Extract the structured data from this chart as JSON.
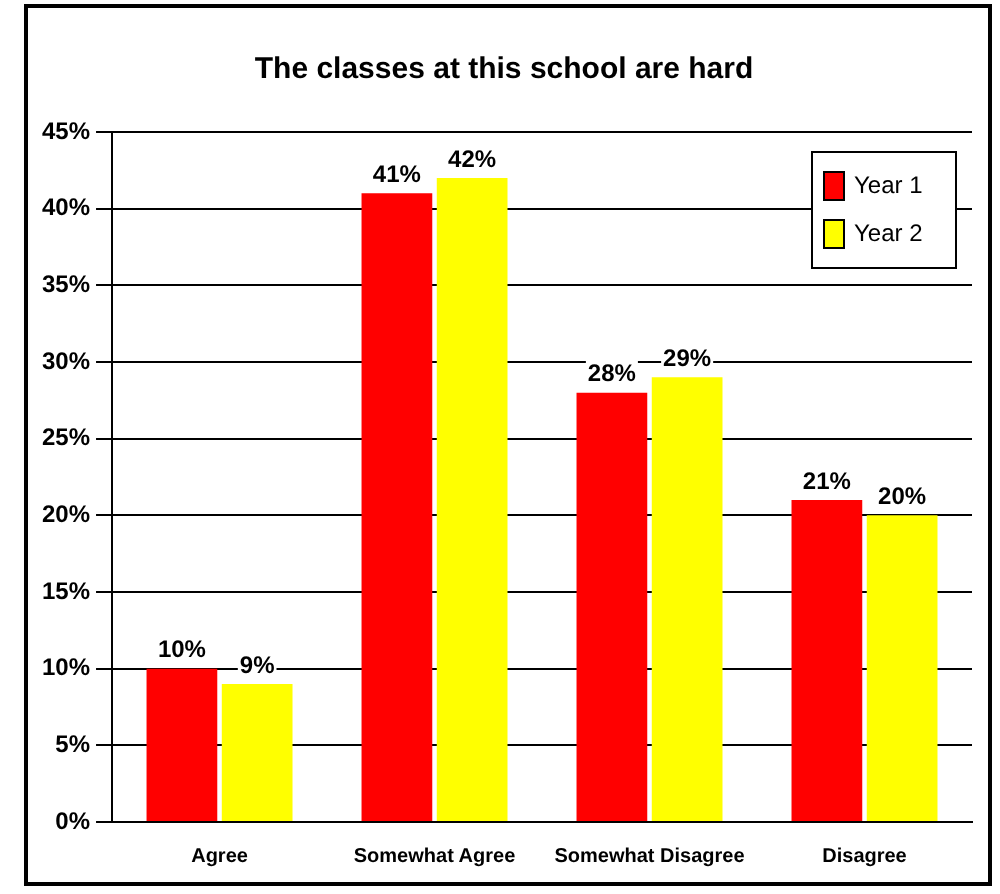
{
  "chart_data": {
    "type": "bar",
    "title": "The classes at this school are hard",
    "categories": [
      "Agree",
      "Somewhat Agree",
      "Somewhat Disagree",
      "Disagree"
    ],
    "series": [
      {
        "name": "Year 1",
        "color": "#ff0000",
        "values": [
          10,
          41,
          28,
          21
        ],
        "value_labels": [
          "10%",
          "41%",
          "28%",
          "21%"
        ]
      },
      {
        "name": "Year 2",
        "color": "#ffff00",
        "values": [
          9,
          42,
          29,
          20
        ],
        "value_labels": [
          "9%",
          "42%",
          "29%",
          "20%"
        ]
      }
    ],
    "ylim": [
      0,
      45
    ],
    "yticks": [
      {
        "value": 0,
        "label": "0%"
      },
      {
        "value": 5,
        "label": "5%"
      },
      {
        "value": 10,
        "label": "10%"
      },
      {
        "value": 15,
        "label": "15%"
      },
      {
        "value": 20,
        "label": "20%"
      },
      {
        "value": 25,
        "label": "25%"
      },
      {
        "value": 30,
        "label": "30%"
      },
      {
        "value": 35,
        "label": "35%"
      },
      {
        "value": 40,
        "label": "40%"
      },
      {
        "value": 45,
        "label": "45%"
      }
    ],
    "grid": "y",
    "legend": "top right"
  }
}
